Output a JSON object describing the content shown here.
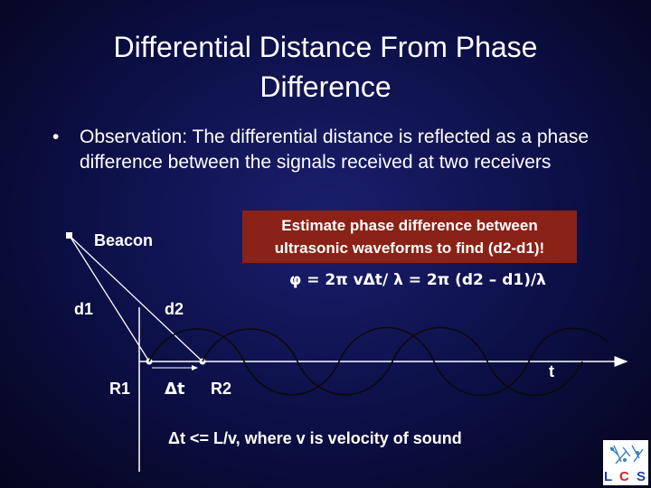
{
  "slide": {
    "title_line1": "Differential Distance From Phase",
    "title_line2": "Difference",
    "bullet_symbol": "•",
    "bullet_text": "Observation: The differential distance is reflected as a phase difference between the signals received at two receivers"
  },
  "callout": {
    "line1": "Estimate phase difference between",
    "line2": "ultrasonic waveforms to find (d2-d1)!",
    "color": "#8b2217"
  },
  "diagram": {
    "beacon_label": "Beacon",
    "d1_label": "d1",
    "d2_label": "d2",
    "r1_label": "R1",
    "dt_label": "Δt",
    "r2_label": "R2",
    "t_label": "t",
    "formula": "φ = 2π vΔt/ λ = 2π (d2 – d1)/λ",
    "note": "Δt <= L/v, where v is velocity of sound"
  },
  "logo": {
    "letters": [
      "L",
      "C",
      "S"
    ]
  }
}
